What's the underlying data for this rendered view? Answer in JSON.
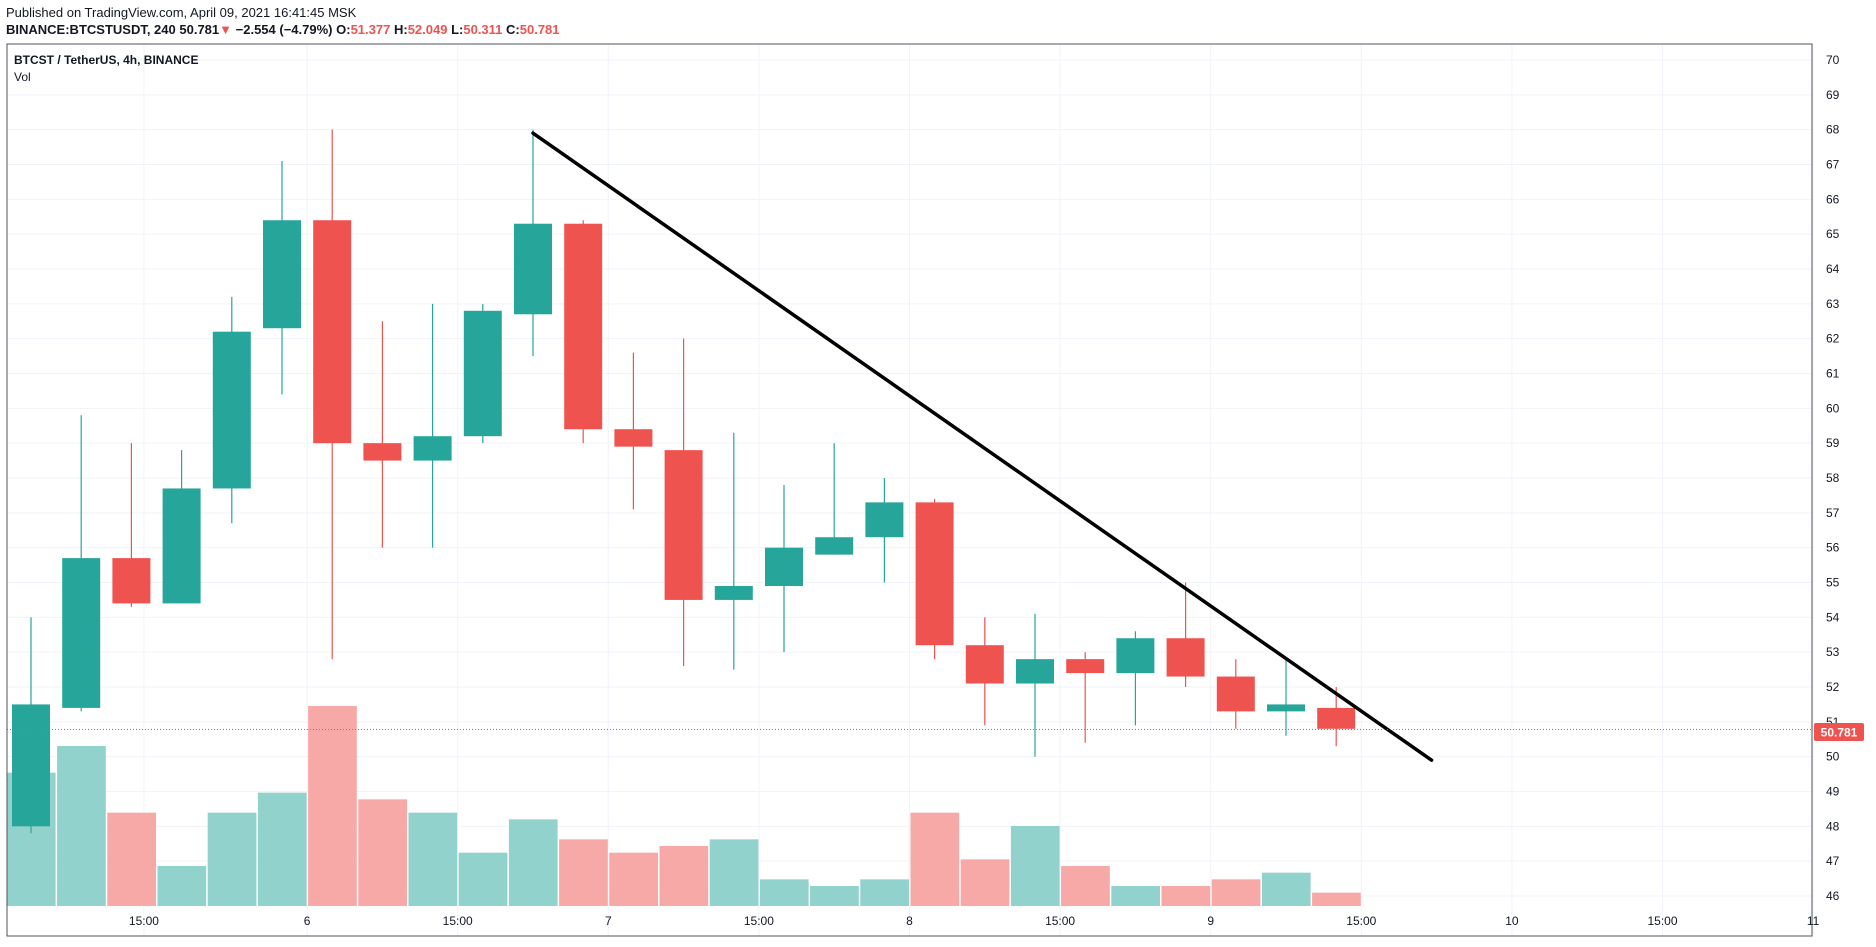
{
  "header": {
    "published": "Published on TradingView.com, April 09, 2021 16:41:45 MSK",
    "symbol": "BINANCE:BTCSTUSDT, 240",
    "last": "50.781",
    "change": "−2.554 (−4.79%)",
    "o_label": "O:",
    "o_value": "51.377",
    "h_label": "H:",
    "h_value": "52.049",
    "l_label": "L:",
    "l_value": "50.311",
    "c_label": "C:",
    "c_value": "50.781"
  },
  "legend": {
    "title": "BTCST / TetherUS, 4h, BINANCE",
    "vol": "Vol"
  },
  "price_label": "50.781",
  "colors": {
    "up": "#26a69a",
    "down": "#ef5350",
    "up_vol": "#92d2cc",
    "down_vol": "#f7a9a7",
    "trendline": "#000000",
    "grid": "#f0f3fa"
  },
  "chart_data": {
    "type": "candlestick",
    "y_ticks": [
      46,
      47,
      48,
      49,
      50,
      51,
      52,
      53,
      54,
      55,
      56,
      57,
      58,
      59,
      60,
      61,
      62,
      63,
      64,
      65,
      66,
      67,
      68,
      69,
      70
    ],
    "ylim": [
      45.6,
      70.2
    ],
    "x_tick_labels": [
      "15:00",
      "6",
      "15:00",
      "7",
      "15:00",
      "8",
      "15:00",
      "9",
      "15:00",
      "10",
      "15:00",
      "11"
    ],
    "x_tick_slots": [
      2.25,
      5.5,
      8.5,
      11.5,
      14.5,
      17.5,
      20.5,
      23.5,
      26.5,
      29.5,
      32.5,
      35.5
    ],
    "candles": [
      {
        "o": 48.0,
        "h": 54.0,
        "l": 47.8,
        "c": 51.5,
        "v": 1.0
      },
      {
        "o": 51.4,
        "h": 59.8,
        "l": 51.3,
        "c": 55.7,
        "v": 1.2
      },
      {
        "o": 55.7,
        "h": 59.0,
        "l": 54.3,
        "c": 54.4,
        "v": 0.7
      },
      {
        "o": 54.4,
        "h": 58.8,
        "l": 54.4,
        "c": 57.7,
        "v": 0.3
      },
      {
        "o": 57.7,
        "h": 63.2,
        "l": 56.7,
        "c": 62.2,
        "v": 0.7
      },
      {
        "o": 62.3,
        "h": 67.1,
        "l": 60.4,
        "c": 65.4,
        "v": 0.85
      },
      {
        "o": 65.4,
        "h": 68.0,
        "l": 52.8,
        "c": 59.0,
        "v": 1.5
      },
      {
        "o": 59.0,
        "h": 62.5,
        "l": 56.0,
        "c": 58.5,
        "v": 0.8
      },
      {
        "o": 58.5,
        "h": 63.0,
        "l": 56.0,
        "c": 59.2,
        "v": 0.7
      },
      {
        "o": 59.2,
        "h": 63.0,
        "l": 59.0,
        "c": 62.8,
        "v": 0.4
      },
      {
        "o": 62.7,
        "h": 68.0,
        "l": 61.5,
        "c": 65.3,
        "v": 0.65
      },
      {
        "o": 65.3,
        "h": 65.4,
        "l": 59.0,
        "c": 59.4,
        "v": 0.5
      },
      {
        "o": 59.4,
        "h": 61.6,
        "l": 57.1,
        "c": 58.9,
        "v": 0.4
      },
      {
        "o": 58.8,
        "h": 62.0,
        "l": 52.6,
        "c": 54.5,
        "v": 0.45
      },
      {
        "o": 54.5,
        "h": 59.3,
        "l": 52.5,
        "c": 54.9,
        "v": 0.5
      },
      {
        "o": 54.9,
        "h": 57.8,
        "l": 53.0,
        "c": 56.0,
        "v": 0.2
      },
      {
        "o": 55.8,
        "h": 59.0,
        "l": 55.8,
        "c": 56.3,
        "v": 0.15
      },
      {
        "o": 56.3,
        "h": 58.0,
        "l": 55.0,
        "c": 57.3,
        "v": 0.2
      },
      {
        "o": 57.3,
        "h": 57.4,
        "l": 52.8,
        "c": 53.2,
        "v": 0.7
      },
      {
        "o": 53.2,
        "h": 54.0,
        "l": 50.9,
        "c": 52.1,
        "v": 0.35
      },
      {
        "o": 52.1,
        "h": 54.1,
        "l": 50.0,
        "c": 52.8,
        "v": 0.6
      },
      {
        "o": 52.8,
        "h": 53.0,
        "l": 50.4,
        "c": 52.4,
        "v": 0.3
      },
      {
        "o": 52.4,
        "h": 53.6,
        "l": 50.9,
        "c": 53.4,
        "v": 0.15
      },
      {
        "o": 53.4,
        "h": 55.0,
        "l": 52.0,
        "c": 52.3,
        "v": 0.15
      },
      {
        "o": 52.3,
        "h": 52.8,
        "l": 50.8,
        "c": 51.3,
        "v": 0.2
      },
      {
        "o": 51.3,
        "h": 52.8,
        "l": 50.6,
        "c": 51.5,
        "v": 0.25
      },
      {
        "o": 51.4,
        "h": 52.0,
        "l": 50.3,
        "c": 50.8,
        "v": 0.1
      }
    ],
    "trendline": {
      "from_slot": 10.5,
      "from_price": 67.9,
      "to_slot": 28.4,
      "to_price": 49.9
    },
    "last_price": 50.781
  }
}
